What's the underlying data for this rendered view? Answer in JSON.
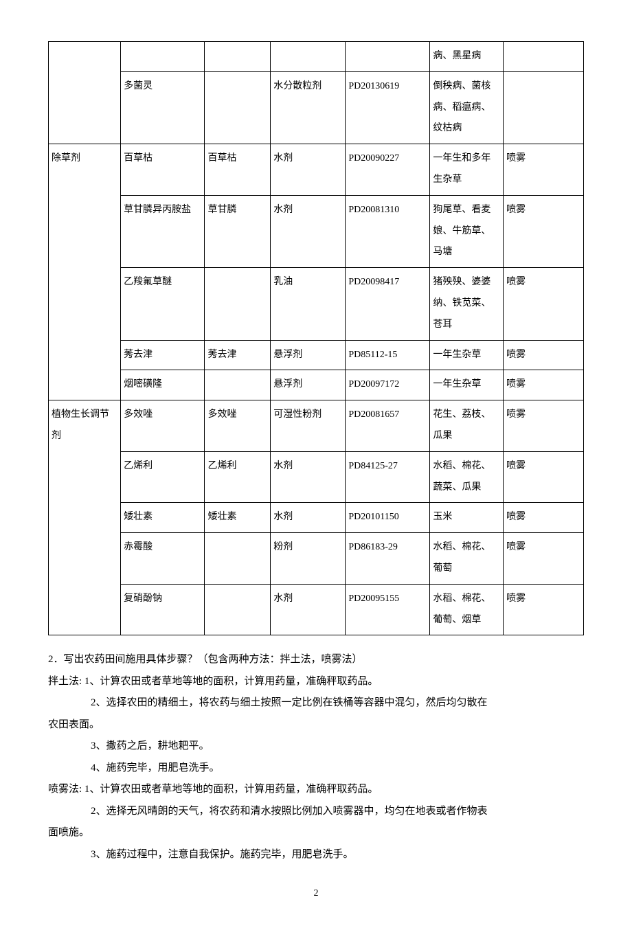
{
  "table": {
    "border_color": "#000000",
    "background": "#ffffff",
    "font_size": 14,
    "rows": [
      {
        "c0": "",
        "c1": "",
        "c2": "",
        "c3": "",
        "c4": "",
        "c5": "病、黑星病",
        "c6": ""
      },
      {
        "c0": "",
        "c1": "多菌灵",
        "c2": "",
        "c3": "水分散粒剂",
        "c4": "PD20130619",
        "c5": "倒秧病、菌核病、稻瘟病、纹枯病",
        "c6": ""
      },
      {
        "c0": "除草剂",
        "c1": "百草枯",
        "c2": "百草枯",
        "c3": "水剂",
        "c4": "PD20090227",
        "c5": "一年生和多年生杂草",
        "c6": "喷雾"
      },
      {
        "c0": "",
        "c1": "草甘膦异丙胺盐",
        "c2": "草甘膦",
        "c3": "水剂",
        "c4": "PD20081310",
        "c5": "狗尾草、看麦娘、牛筋草、马塘",
        "c6": "喷雾"
      },
      {
        "c0": "",
        "c1": "乙羧氟草醚",
        "c2": "",
        "c3": "乳油",
        "c4": "PD20098417",
        "c5": "猪殃殃、婆婆纳、铁苋菜、苍耳",
        "c6": "喷雾"
      },
      {
        "c0": "",
        "c1": "莠去津",
        "c2": "莠去津",
        "c3": "悬浮剂",
        "c4": "PD85112-15",
        "c5": "一年生杂草",
        "c6": "喷雾"
      },
      {
        "c0": "",
        "c1": "烟嘧磺隆",
        "c2": "",
        "c3": "悬浮剂",
        "c4": "PD20097172",
        "c5": "一年生杂草",
        "c6": "喷雾"
      },
      {
        "c0": "植物生长调节剂",
        "c1": "多效唑",
        "c2": "多效唑",
        "c3": "可湿性粉剂",
        "c4": "PD20081657",
        "c5": "花生、荔枝、瓜果",
        "c6": "喷雾"
      },
      {
        "c0": "",
        "c1": "乙烯利",
        "c2": "乙烯利",
        "c3": "水剂",
        "c4": "PD84125-27",
        "c5": "水稻、棉花、蔬菜、瓜果",
        "c6": "喷雾"
      },
      {
        "c0": "",
        "c1": "矮壮素",
        "c2": "矮壮素",
        "c3": "水剂",
        "c4": "PD20101150",
        "c5": "玉米",
        "c6": "喷雾"
      },
      {
        "c0": "",
        "c1": "赤霉酸",
        "c2": "",
        "c3": "粉剂",
        "c4": "PD86183-29",
        "c5": "水稻、棉花、葡萄",
        "c6": "喷雾"
      },
      {
        "c0": "",
        "c1": "复硝酚钠",
        "c2": "",
        "c3": "水剂",
        "c4": "PD20095155",
        "c5": "水稻、棉花、葡萄、烟草",
        "c6": "喷雾"
      }
    ],
    "group_spans": {
      "row0_c0_span": 2,
      "row2_c0_span": 5,
      "row7_c0_span": 5
    }
  },
  "question": {
    "title": "2．写出农药田间施用具体步骤？（包含两种方法：拌土法，喷雾法）",
    "bantu": {
      "line1": "拌土法: 1、计算农田或者草地等地的面积，计算用药量，准确秤取药品。",
      "line2a": "2、选择农田的精细土，将农药与细土按照一定比例在铁桶等容器中混匀，然后均匀散在",
      "line2b": "农田表面。",
      "line3": "3、撒药之后，耕地耙平。",
      "line4": "4、施药完毕，用肥皂洗手。"
    },
    "penwu": {
      "line1": "喷雾法: 1、计算农田或者草地等地的面积，计算用药量，准确秤取药品。",
      "line2a": "2、选择无风晴朗的天气，将农药和清水按照比例加入喷雾器中，均匀在地表或者作物表",
      "line2b": "面喷施。",
      "line3": "3、施药过程中，注意自我保护。施药完毕，用肥皂洗手。"
    }
  },
  "page": {
    "number": "2"
  }
}
